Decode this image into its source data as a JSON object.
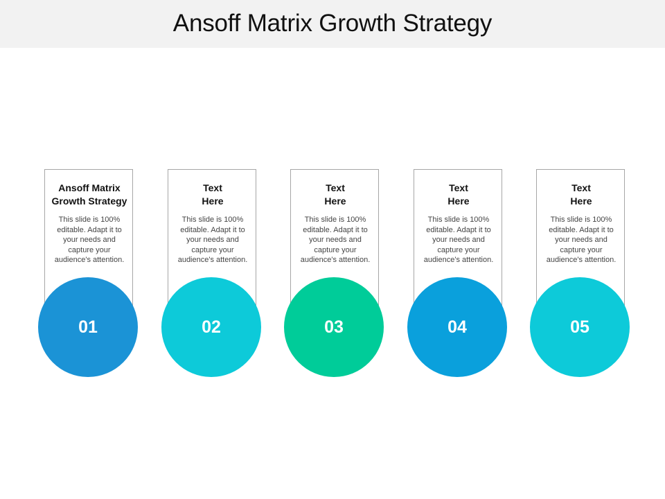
{
  "title": "Ansoff Matrix Growth Strategy",
  "steps": [
    {
      "number": "01",
      "title_line1": "Ansoff Matrix",
      "title_line2": "Growth Strategy",
      "body": [
        "This slide is 100%",
        "editable. Adapt it to",
        "your needs and",
        "capture your",
        "audience's attention."
      ],
      "color": "#1b93d6"
    },
    {
      "number": "02",
      "title_line1": "Text",
      "title_line2": "Here",
      "body": [
        "This slide is 100%",
        "editable. Adapt it to",
        "your needs and",
        "capture your",
        "audience's attention."
      ],
      "color": "#0dcad9"
    },
    {
      "number": "03",
      "title_line1": "Text",
      "title_line2": "Here",
      "body": [
        "This slide is 100%",
        "editable. Adapt it to",
        "your needs and",
        "capture your",
        "audience's attention."
      ],
      "color": "#00cc99"
    },
    {
      "number": "04",
      "title_line1": "Text",
      "title_line2": "Here",
      "body": [
        "This slide is 100%",
        "editable. Adapt it to",
        "your needs and",
        "capture your",
        "audience's attention."
      ],
      "color": "#0aa0dc"
    },
    {
      "number": "05",
      "title_line1": "Text",
      "title_line2": "Here",
      "body": [
        "This slide is 100%",
        "editable. Adapt it to",
        "your needs and",
        "capture your",
        "audience's attention."
      ],
      "color": "#0dcad9"
    }
  ]
}
